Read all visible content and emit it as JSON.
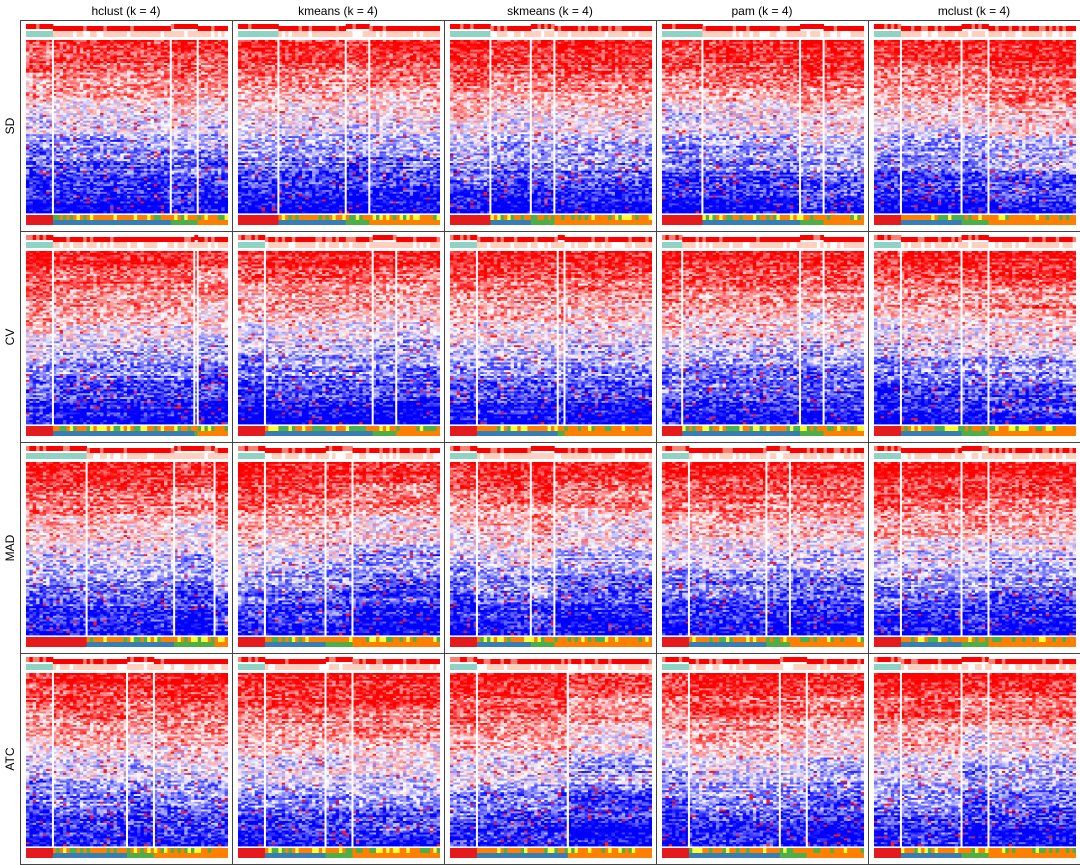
{
  "chart_data": {
    "type": "heatmap",
    "title": "",
    "column_labels": [
      "hclust (k = 4)",
      "kmeans (k = 4)",
      "skmeans (k = 4)",
      "pam (k = 4)",
      "mclust (k = 4)"
    ],
    "row_labels": [
      "SD",
      "CV",
      "MAD",
      "ATC"
    ],
    "grid": {
      "rows": 4,
      "cols": 5
    },
    "colors": {
      "high": "#ff0000",
      "mid": "#ffffff",
      "low": "#0000ff",
      "annotation_top": [
        "#ff0000",
        "#fa8072",
        "#ffd0c0",
        "#8fd3c4"
      ],
      "annotation_bottom": [
        "#e41a1c",
        "#377eb8",
        "#4daf4a",
        "#ff7f00",
        "#ffff33"
      ]
    },
    "panels": [
      {
        "method": "hclust (k = 4)",
        "top_n": "SD",
        "clusters": [
          0.14,
          0.58,
          0.13,
          0.15
        ]
      },
      {
        "method": "kmeans (k = 4)",
        "top_n": "SD",
        "clusters": [
          0.2,
          0.34,
          0.11,
          0.35
        ]
      },
      {
        "method": "skmeans (k = 4)",
        "top_n": "SD",
        "clusters": [
          0.2,
          0.2,
          0.12,
          0.48
        ]
      },
      {
        "method": "pam (k = 4)",
        "top_n": "SD",
        "clusters": [
          0.2,
          0.48,
          0.12,
          0.2
        ]
      },
      {
        "method": "mclust (k = 4)",
        "top_n": "SD",
        "clusters": [
          0.14,
          0.29,
          0.13,
          0.44
        ]
      },
      {
        "method": "hclust (k = 4)",
        "top_n": "CV",
        "clusters": [
          0.14,
          0.7,
          0.01,
          0.15
        ]
      },
      {
        "method": "kmeans (k = 4)",
        "top_n": "CV",
        "clusters": [
          0.13,
          0.53,
          0.13,
          0.21
        ]
      },
      {
        "method": "skmeans (k = 4)",
        "top_n": "CV",
        "clusters": [
          0.14,
          0.4,
          0.02,
          0.44
        ]
      },
      {
        "method": "pam (k = 4)",
        "top_n": "CV",
        "clusters": [
          0.1,
          0.58,
          0.12,
          0.2
        ]
      },
      {
        "method": "mclust (k = 4)",
        "top_n": "CV",
        "clusters": [
          0.14,
          0.3,
          0.13,
          0.43
        ]
      },
      {
        "method": "hclust (k = 4)",
        "top_n": "MAD",
        "clusters": [
          0.3,
          0.44,
          0.2,
          0.06
        ]
      },
      {
        "method": "kmeans (k = 4)",
        "top_n": "MAD",
        "clusters": [
          0.14,
          0.3,
          0.12,
          0.44
        ]
      },
      {
        "method": "skmeans (k = 4)",
        "top_n": "MAD",
        "clusters": [
          0.14,
          0.26,
          0.12,
          0.48
        ]
      },
      {
        "method": "pam (k = 4)",
        "top_n": "MAD",
        "clusters": [
          0.13,
          0.38,
          0.12,
          0.37
        ]
      },
      {
        "method": "mclust (k = 4)",
        "top_n": "MAD",
        "clusters": [
          0.14,
          0.3,
          0.12,
          0.44
        ]
      },
      {
        "method": "hclust (k = 4)",
        "top_n": "ATC",
        "clusters": [
          0.14,
          0.36,
          0.13,
          0.37
        ]
      },
      {
        "method": "kmeans (k = 4)",
        "top_n": "ATC",
        "clusters": [
          0.14,
          0.3,
          0.12,
          0.44
        ]
      },
      {
        "method": "skmeans (k = 4)",
        "top_n": "ATC",
        "clusters": [
          0.14,
          0.44,
          0.01,
          0.41
        ]
      },
      {
        "method": "pam (k = 4)",
        "top_n": "ATC",
        "clusters": [
          0.13,
          0.46,
          0.12,
          0.29
        ]
      },
      {
        "method": "mclust (k = 4)",
        "top_n": "ATC",
        "clusters": [
          0.14,
          0.3,
          0.12,
          0.44
        ]
      }
    ]
  }
}
